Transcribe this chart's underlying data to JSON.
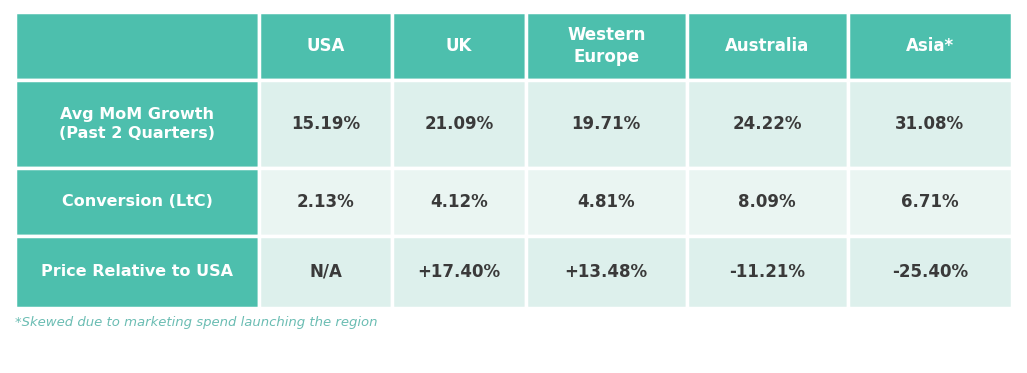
{
  "col_headers": [
    "USA",
    "UK",
    "Western\nEurope",
    "Australia",
    "Asia*"
  ],
  "row_headers": [
    "Avg MoM Growth\n(Past 2 Quarters)",
    "Conversion (LtC)",
    "Price Relative to USA"
  ],
  "cell_data": [
    [
      "15.19%",
      "21.09%",
      "19.71%",
      "24.22%",
      "31.08%"
    ],
    [
      "2.13%",
      "4.12%",
      "4.81%",
      "8.09%",
      "6.71%"
    ],
    [
      "N/A",
      "+17.40%",
      "+13.48%",
      "-11.21%",
      "-25.40%"
    ]
  ],
  "header_bg": "#4DBFAD",
  "row_header_bg": "#4DBFAD",
  "cell_bg_row0": "#DDF0EC",
  "cell_bg_row1": "#EAF5F2",
  "cell_bg_row2": "#DDF0EC",
  "border_color": "#FFFFFF",
  "header_text_color": "#FFFFFF",
  "cell_text_color": "#3A3A3A",
  "footnote": "*Skewed due to marketing spend launching the region",
  "footnote_color": "#6BBDB3",
  "background_color": "#FFFFFF"
}
